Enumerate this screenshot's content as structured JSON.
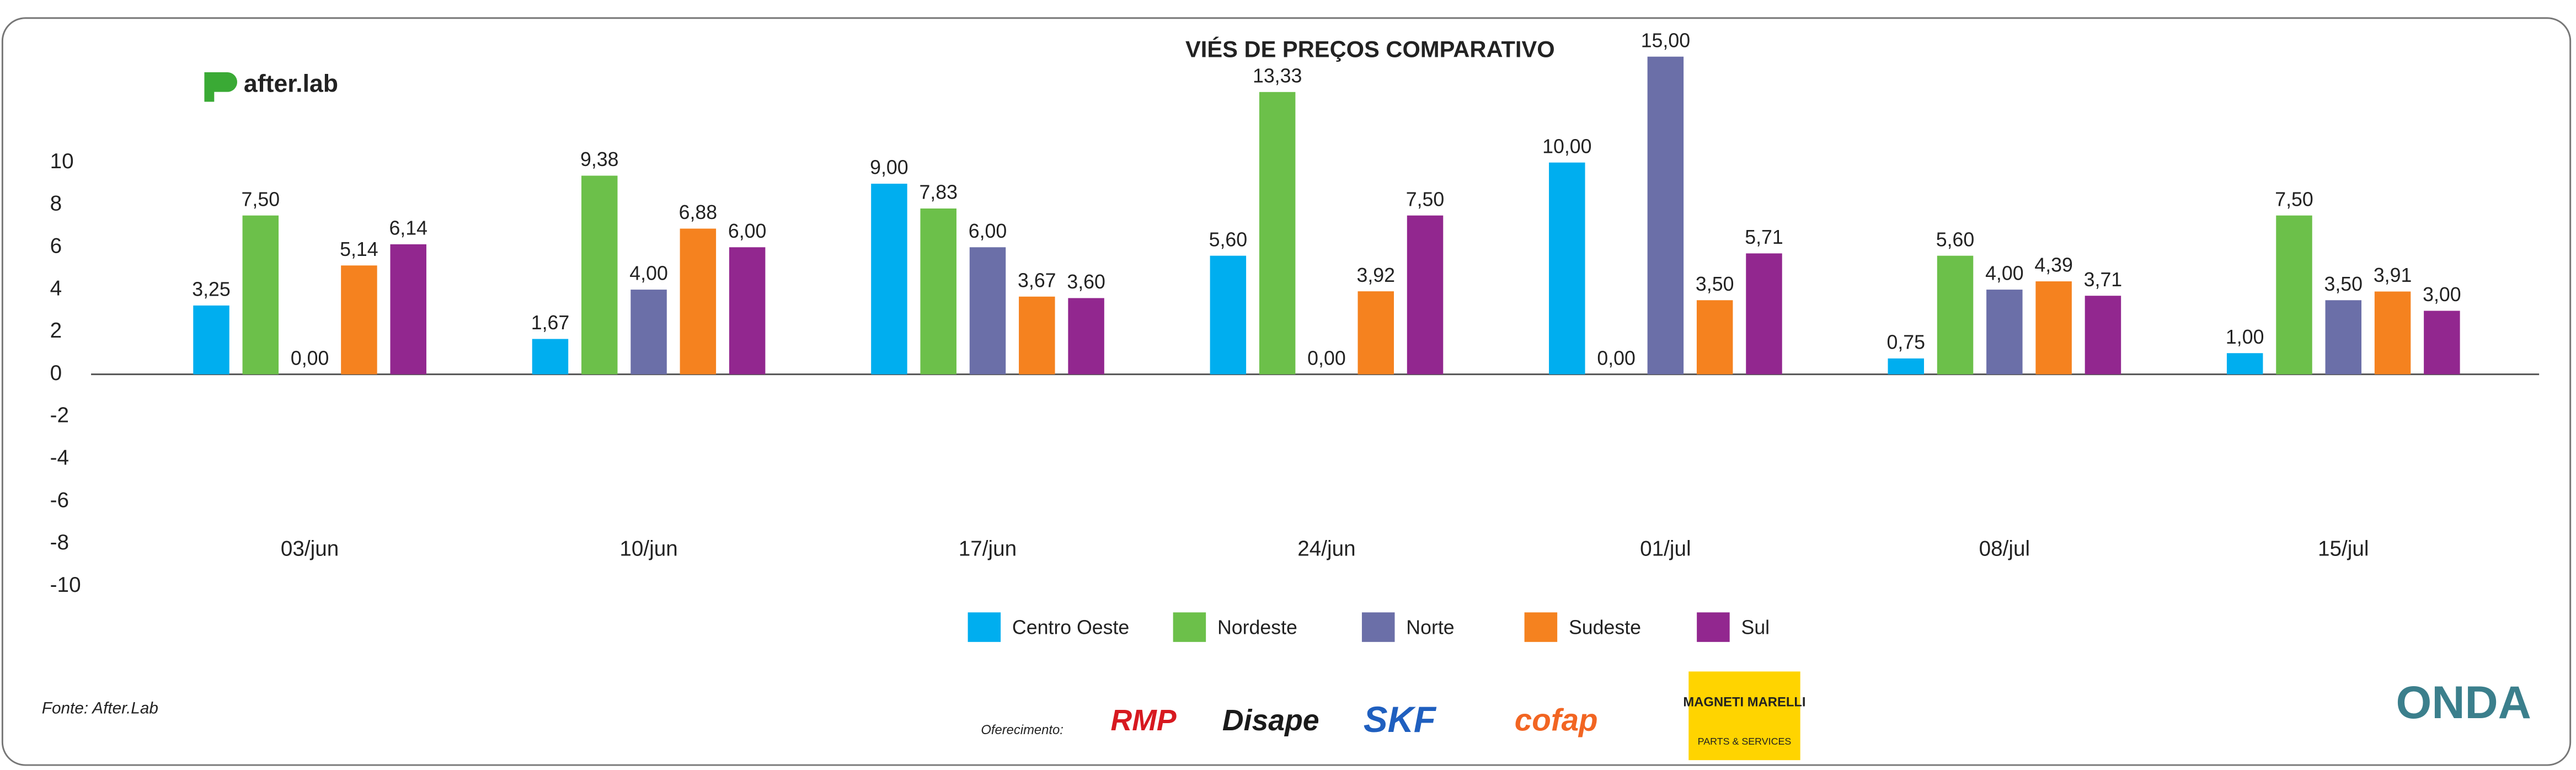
{
  "chart_data": {
    "type": "bar",
    "title": "VIÉS DE PREÇOS COMPARATIVO",
    "categories": [
      "03/jun",
      "10/jun",
      "17/jun",
      "24/jun",
      "01/jul",
      "08/jul",
      "15/jul"
    ],
    "series": [
      {
        "name": "Centro Oeste",
        "color": "#00aeef",
        "values": [
          3.25,
          1.67,
          9,
          5.6,
          10,
          0.75,
          1
        ],
        "value_labels": [
          "3,25",
          "1,67",
          "9,00",
          "5,60",
          "10,00",
          "0,75",
          "1,00"
        ]
      },
      {
        "name": "Nordeste",
        "color": "#6cc04a",
        "values": [
          7.5,
          9.38,
          7.83,
          13.33,
          0,
          5.6,
          7.5
        ],
        "value_labels": [
          "7,50",
          "9,38",
          "7,83",
          "13,33",
          "0,00",
          "5,60",
          "7,50"
        ]
      },
      {
        "name": "Norte",
        "color": "#6b6fa8",
        "values": [
          0,
          4,
          6,
          0,
          15,
          4,
          3.5
        ],
        "value_labels": [
          "0,00",
          "4,00",
          "6,00",
          "0,00",
          "15,00",
          "4,00",
          "3,50"
        ]
      },
      {
        "name": "Sudeste",
        "color": "#f5821f",
        "values": [
          5.14,
          6.88,
          3.67,
          3.92,
          3.5,
          4.39,
          3.91
        ],
        "value_labels": [
          "5,14",
          "6,88",
          "3,67",
          "3,92",
          "3,50",
          "4,39",
          "3,91"
        ]
      },
      {
        "name": "Sul",
        "color": "#92278f",
        "values": [
          6.14,
          6,
          3.6,
          7.5,
          5.71,
          3.71,
          3
        ],
        "value_labels": [
          "6,14",
          "6,00",
          "3,60",
          "7,50",
          "5,71",
          "3,71",
          "3,00"
        ]
      }
    ],
    "ylim": [
      -10,
      10
    ],
    "yticks": [
      -10,
      -8,
      -6,
      -4,
      -2,
      0,
      2,
      4,
      6,
      8,
      10
    ],
    "grid": false
  },
  "brand": "after.lab",
  "source": "Fonte: After.Lab",
  "sponsor_label": "Oferecimento:",
  "sponsors": [
    "RMP",
    "Disape",
    "SKF",
    "cofap",
    "MAGNETI MARELLI",
    "PARTS & SERVICES"
  ],
  "partner": "ONDA"
}
